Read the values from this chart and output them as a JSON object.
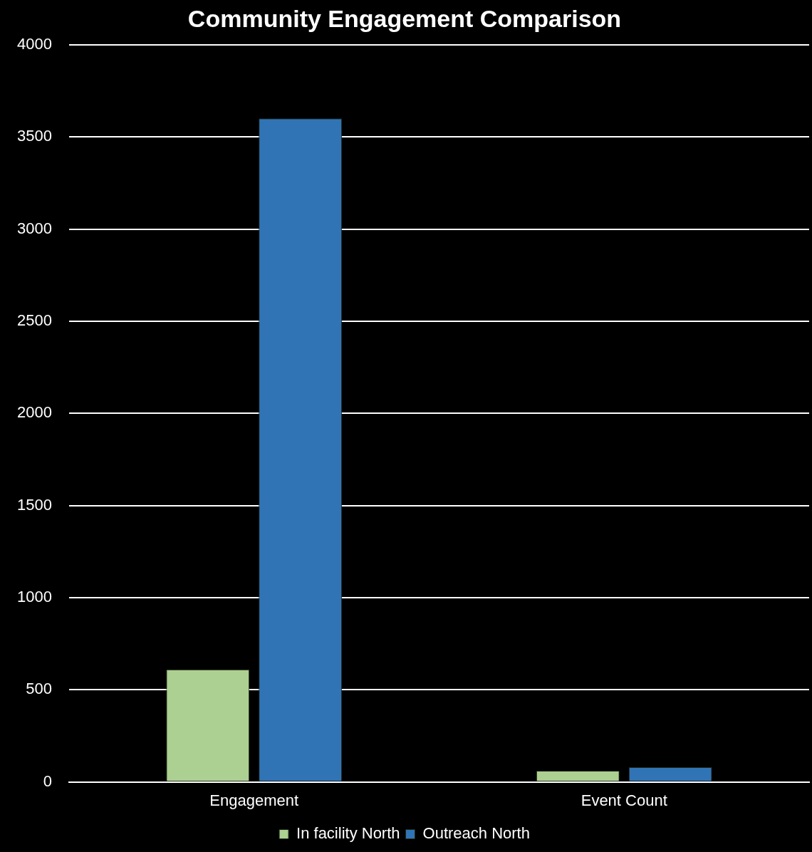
{
  "chart_data": {
    "type": "bar",
    "title": "Community Engagement Comparison",
    "categories": [
      "Engagement",
      "Event Count"
    ],
    "series": [
      {
        "name": "In facility North",
        "color": "#acd091",
        "values": [
          610,
          60
        ]
      },
      {
        "name": "Outreach North",
        "color": "#3174b5",
        "values": [
          3600,
          80
        ]
      }
    ],
    "ylim": [
      0,
      4000
    ],
    "yticks": [
      0,
      500,
      1000,
      1500,
      2000,
      2500,
      3000,
      3500,
      4000
    ],
    "grid": "y",
    "legend": "bottom"
  }
}
